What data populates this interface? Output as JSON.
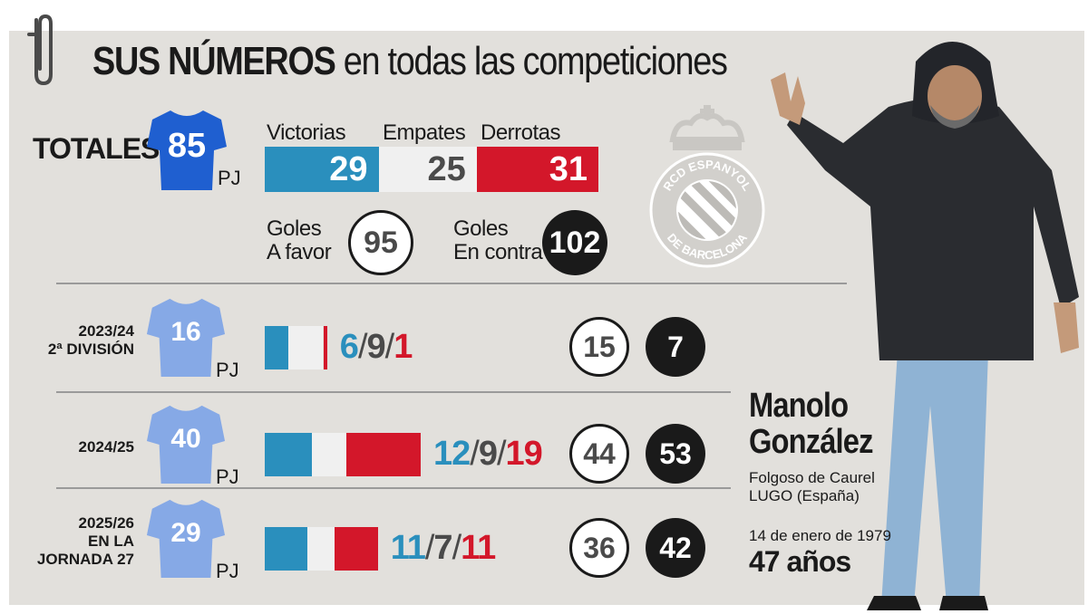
{
  "header": {
    "title_bold": "SUS NÚMEROS",
    "title_rest": "en todas las competiciones"
  },
  "colors": {
    "victorias": "#2a8fbd",
    "empates_bar": "#f0f0f0",
    "derrotas": "#d3172a",
    "empates_text": "#4a4a4a",
    "shirt_total": "#1f5fd0",
    "shirt_season": "#86a9e6",
    "background": "#e2e0dc"
  },
  "totales": {
    "label": "TOTALES",
    "pj": 85,
    "pj_label": "PJ",
    "victorias_label": "Victorias",
    "empates_label": "Empates",
    "derrotas_label": "Derrotas",
    "victorias": 29,
    "empates": 25,
    "derrotas": 31,
    "goles_favor_label_1": "Goles",
    "goles_favor_label_2": "A favor",
    "goles_favor": 95,
    "goles_contra_label_1": "Goles",
    "goles_contra_label_2": "En contra",
    "goles_contra": 102
  },
  "crest": {
    "text_top": "RCD ESPANYOL",
    "text_bottom": "DE BARCELONA"
  },
  "chart_data": {
    "type": "bar",
    "stacked": true,
    "title": "SUS NÚMEROS en todas las competiciones",
    "categories": [
      "2023/24 2ª DIVISIÓN",
      "2024/25",
      "2025/26 EN LA JORNADA 27"
    ],
    "series": [
      {
        "name": "Victorias",
        "values": [
          6,
          12,
          11
        ]
      },
      {
        "name": "Empates",
        "values": [
          9,
          9,
          7
        ]
      },
      {
        "name": "Derrotas",
        "values": [
          1,
          19,
          11
        ]
      }
    ],
    "partidos_jugados": [
      16,
      40,
      29
    ],
    "goles_a_favor": [
      15,
      44,
      36
    ],
    "goles_en_contra": [
      7,
      53,
      42
    ]
  },
  "seasons": [
    {
      "line1": "2023/24",
      "line2": "2ª DIVISIÓN",
      "line3": "",
      "pj": 16,
      "pj_label": "PJ",
      "v": "6",
      "e": "9",
      "d": "1",
      "sep": "/",
      "gf": 15,
      "gc": 7
    },
    {
      "line1": "2024/25",
      "line2": "",
      "line3": "",
      "pj": 40,
      "pj_label": "PJ",
      "v": "12",
      "e": "9",
      "d": "19",
      "sep": "/",
      "gf": 44,
      "gc": 53
    },
    {
      "line1": "2025/26",
      "line2": "EN LA",
      "line3": "JORNADA 27",
      "pj": 29,
      "pj_label": "PJ",
      "v": "11",
      "e": "7",
      "d": "11",
      "sep": "/",
      "gf": 36,
      "gc": 42
    }
  ],
  "profile": {
    "name_1": "Manolo",
    "name_2": "González",
    "birthplace_1": "Folgoso de Caurel",
    "birthplace_2": "LUGO (España)",
    "birthdate": "14 de enero de 1979",
    "age": "47 años"
  }
}
